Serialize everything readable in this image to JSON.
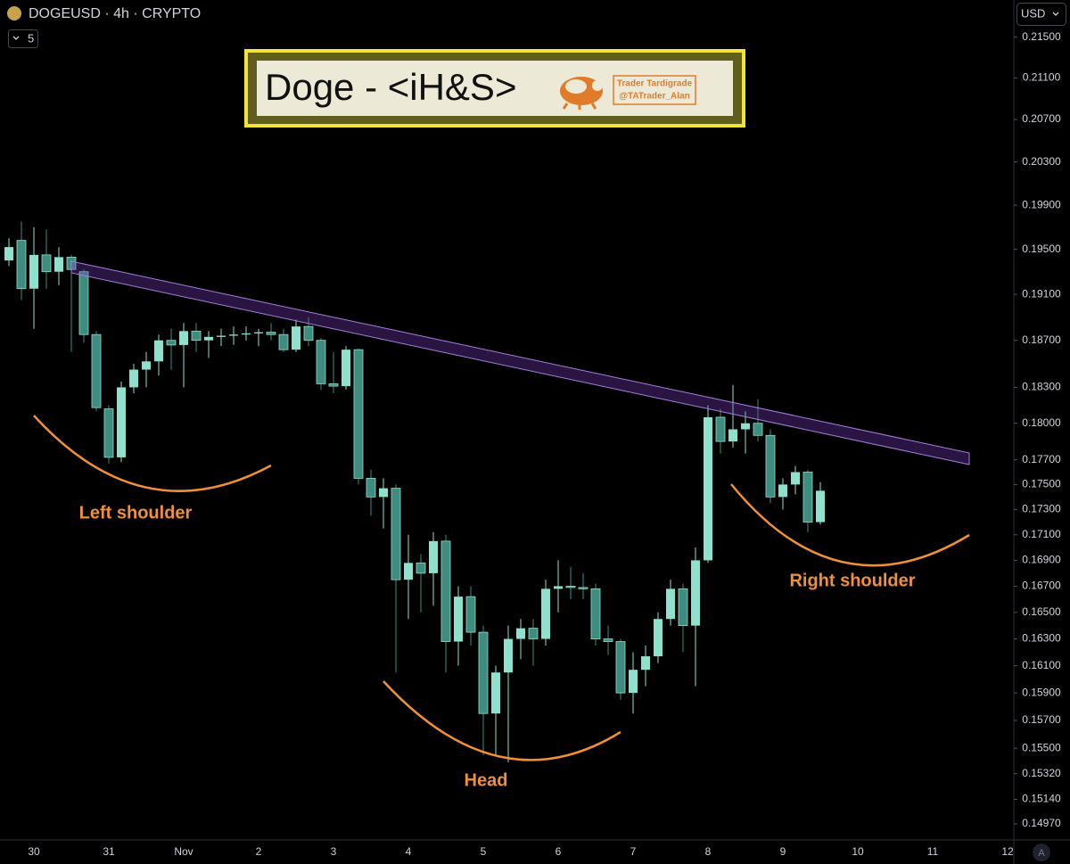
{
  "header": {
    "symbol": "DOGEUSD · 4h · CRYPTO",
    "interval_badge": "5",
    "currency": "USD",
    "scale_mode": "A"
  },
  "chart_data": {
    "type": "candlestick",
    "title": "Doge - <iH&S>",
    "watermark": [
      "Trader Tardigrade",
      "@TATrader_Alan"
    ],
    "annotations": [
      "Left shoulder",
      "Head",
      "Right shoulder"
    ],
    "categories": [
      null,
      null,
      "30",
      null,
      null,
      null,
      null,
      null,
      "31",
      null,
      null,
      null,
      null,
      null,
      "Nov",
      null,
      null,
      null,
      null,
      null,
      "2",
      null,
      null,
      null,
      null,
      null,
      "3",
      null,
      null,
      null,
      null,
      null,
      "4",
      null,
      null,
      null,
      null,
      null,
      "5",
      null,
      null,
      null,
      null,
      null,
      "6",
      null,
      null,
      null,
      null,
      null,
      "7",
      null,
      null,
      null,
      null,
      null,
      "8",
      null,
      null,
      null,
      null,
      null,
      "9",
      null,
      null,
      null,
      null,
      null,
      "10",
      null,
      null,
      null,
      null,
      null,
      "11",
      null,
      null,
      null,
      null,
      null,
      "12"
    ],
    "open": [
      0.194,
      0.1958,
      0.1915,
      0.1945,
      0.193,
      0.1943,
      0.193,
      0.1875,
      0.1812,
      0.1772,
      0.183,
      0.1845,
      0.1852,
      0.187,
      0.1866,
      0.1878,
      0.187,
      0.1873,
      0.1874,
      0.1875,
      0.1876,
      0.1877,
      0.1875,
      0.1862,
      0.1882,
      0.187,
      0.1833,
      0.1831,
      0.1862,
      0.1755,
      0.174,
      0.1747,
      0.1675,
      0.1688,
      0.168,
      0.1705,
      0.1628,
      0.1662,
      0.1635,
      0.1575,
      0.1605,
      0.163,
      0.1638,
      0.163,
      0.1668,
      0.167,
      0.1669,
      0.1668,
      0.163,
      0.1628,
      0.159,
      0.1607,
      0.1617,
      0.1645,
      0.1668,
      0.164,
      0.169,
      0.1805,
      0.1785,
      0.1795,
      0.18,
      0.179,
      0.174,
      0.175,
      0.176,
      0.172,
      null,
      null,
      null,
      null,
      null,
      null,
      null,
      null,
      null,
      null,
      null,
      null,
      null,
      null,
      null
    ],
    "high": [
      0.196,
      0.1975,
      0.197,
      0.1968,
      0.1952,
      0.1945,
      0.1932,
      0.1878,
      0.1815,
      0.1835,
      0.185,
      0.186,
      0.1875,
      0.188,
      0.1885,
      0.1885,
      0.1878,
      0.188,
      0.1882,
      0.1882,
      0.188,
      0.1885,
      0.188,
      0.1888,
      0.189,
      0.1872,
      0.186,
      0.1865,
      0.1863,
      0.1762,
      0.1755,
      0.175,
      0.171,
      0.1695,
      0.1712,
      0.171,
      0.167,
      0.167,
      0.164,
      0.161,
      0.164,
      0.1645,
      0.1645,
      0.1675,
      0.169,
      0.1685,
      0.168,
      0.1672,
      0.164,
      0.163,
      0.162,
      0.1625,
      0.165,
      0.1675,
      0.1672,
      0.17,
      0.1815,
      0.1812,
      0.1832,
      0.181,
      0.182,
      0.1795,
      0.1755,
      0.1765,
      0.1762,
      0.1752,
      null,
      null,
      null,
      null,
      null,
      null,
      null,
      null,
      null,
      null,
      null,
      null,
      null,
      null,
      null
    ],
    "low": [
      0.1935,
      0.1905,
      0.188,
      0.1915,
      0.1918,
      0.186,
      0.1868,
      0.181,
      0.1767,
      0.1768,
      0.1825,
      0.183,
      0.184,
      0.1845,
      0.183,
      0.186,
      0.1855,
      0.1865,
      0.1866,
      0.187,
      0.1865,
      0.187,
      0.186,
      0.186,
      0.1865,
      0.1828,
      0.1825,
      0.1828,
      0.175,
      0.1725,
      0.1715,
      0.1605,
      0.1645,
      0.165,
      0.1655,
      0.1605,
      0.161,
      0.1625,
      0.1545,
      0.1545,
      0.154,
      0.1615,
      0.161,
      0.1625,
      0.165,
      0.166,
      0.166,
      0.1625,
      0.1618,
      0.1585,
      0.1575,
      0.1595,
      0.1612,
      0.164,
      0.162,
      0.1595,
      0.1688,
      0.1775,
      0.178,
      0.1775,
      0.1785,
      0.1735,
      0.173,
      0.1742,
      0.1712,
      0.1718,
      null,
      null,
      null,
      null,
      null,
      null,
      null,
      null,
      null,
      null,
      null,
      null,
      null,
      null,
      null
    ],
    "close": [
      0.1952,
      0.1915,
      0.1945,
      0.193,
      0.1943,
      0.1932,
      0.1875,
      0.1813,
      0.1772,
      0.183,
      0.1845,
      0.1852,
      0.187,
      0.1866,
      0.1878,
      0.187,
      0.1873,
      0.1874,
      0.1875,
      0.1876,
      0.1877,
      0.1875,
      0.1862,
      0.1882,
      0.187,
      0.1833,
      0.1831,
      0.1862,
      0.1755,
      0.174,
      0.1747,
      0.1675,
      0.1688,
      0.168,
      0.1705,
      0.1628,
      0.1662,
      0.1635,
      0.1575,
      0.1605,
      0.163,
      0.1638,
      0.163,
      0.1668,
      0.167,
      0.1669,
      0.1668,
      0.163,
      0.1628,
      0.159,
      0.1607,
      0.1617,
      0.1645,
      0.1668,
      0.164,
      0.169,
      0.1805,
      0.1785,
      0.1795,
      0.18,
      0.179,
      0.174,
      0.175,
      0.176,
      0.172,
      0.1745,
      null,
      null,
      null,
      null,
      null,
      null,
      null,
      null,
      null,
      null,
      null,
      null,
      null,
      null,
      null
    ],
    "up_color": "#8fe0cc",
    "down_color": "#3f8c80",
    "log_scale": true,
    "ylim": [
      0.1486,
      0.2187
    ],
    "yticks": [
      {
        "value": 0.215,
        "label": "0.21500"
      },
      {
        "value": 0.211,
        "label": "0.21100"
      },
      {
        "value": 0.207,
        "label": "0.20700"
      },
      {
        "value": 0.203,
        "label": "0.20300"
      },
      {
        "value": 0.199,
        "label": "0.19900"
      },
      {
        "value": 0.195,
        "label": "0.19500"
      },
      {
        "value": 0.191,
        "label": "0.19100"
      },
      {
        "value": 0.187,
        "label": "0.18700"
      },
      {
        "value": 0.183,
        "label": "0.18300"
      },
      {
        "value": 0.18,
        "label": "0.18000"
      },
      {
        "value": 0.177,
        "label": "0.17700"
      },
      {
        "value": 0.175,
        "label": "0.17500"
      },
      {
        "value": 0.173,
        "label": "0.17300"
      },
      {
        "value": 0.171,
        "label": "0.17100"
      },
      {
        "value": 0.169,
        "label": "0.16900"
      },
      {
        "value": 0.167,
        "label": "0.16700"
      },
      {
        "value": 0.165,
        "label": "0.16500"
      },
      {
        "value": 0.163,
        "label": "0.16300"
      },
      {
        "value": 0.161,
        "label": "0.16100"
      },
      {
        "value": 0.159,
        "label": "0.15900"
      },
      {
        "value": 0.157,
        "label": "0.15700"
      },
      {
        "value": 0.155,
        "label": "0.15500"
      },
      {
        "value": 0.1532,
        "label": "0.15320"
      },
      {
        "value": 0.1514,
        "label": "0.15140"
      },
      {
        "value": 0.1497,
        "label": "0.14970"
      }
    ]
  }
}
